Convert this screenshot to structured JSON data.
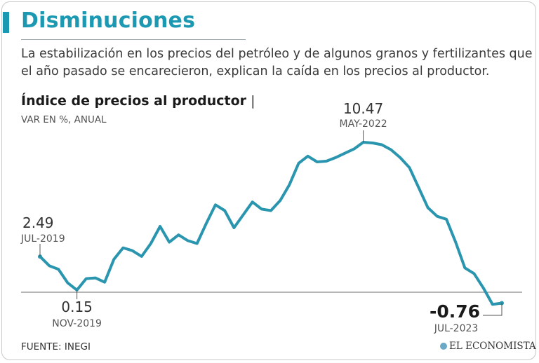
{
  "header": {
    "title": "Disminuciones",
    "subtitle": "La estabilización en los precios del petróleo y de algunos granos y fertilizantes que el año pasado se encarecieron, explican la caída en los precios al productor."
  },
  "chart_header": {
    "title": "Índice de precios al productor",
    "pipe": "|",
    "subtitle": "VAR EN %, ANUAL"
  },
  "chart_data": {
    "type": "line",
    "title": "Índice de precios al productor",
    "ylabel": "VAR EN %, ANUAL",
    "x_start": "JUL-2019",
    "x_end": "JUL-2023",
    "series": [
      {
        "name": "Índice de precios al productor",
        "color": "#2a95ae",
        "values": [
          2.49,
          1.85,
          1.6,
          0.65,
          0.15,
          0.95,
          1.0,
          0.7,
          2.3,
          3.1,
          2.9,
          2.5,
          3.4,
          4.6,
          3.5,
          4.0,
          3.6,
          3.4,
          4.8,
          6.1,
          5.7,
          4.5,
          5.4,
          6.3,
          5.8,
          5.7,
          6.4,
          7.5,
          9.0,
          9.5,
          9.1,
          9.15,
          9.4,
          9.7,
          10.0,
          10.47,
          10.42,
          10.3,
          9.95,
          9.4,
          8.7,
          7.3,
          5.9,
          5.3,
          5.1,
          3.5,
          1.7,
          1.3,
          0.3,
          -0.85,
          -0.76
        ]
      }
    ],
    "annotations": [
      {
        "label": "2.49",
        "date": "JUL-2019",
        "index": 0
      },
      {
        "label": "0.15",
        "date": "NOV-2019",
        "index": 4
      },
      {
        "label": "10.47",
        "date": "MAY-2022",
        "index": 35
      },
      {
        "label": "-0.76",
        "date": "JUL-2023",
        "index": 50
      }
    ],
    "baseline": 0
  },
  "footer": {
    "source": "FUENTE: INEGI",
    "brand": "EL ECONOMISTA"
  }
}
